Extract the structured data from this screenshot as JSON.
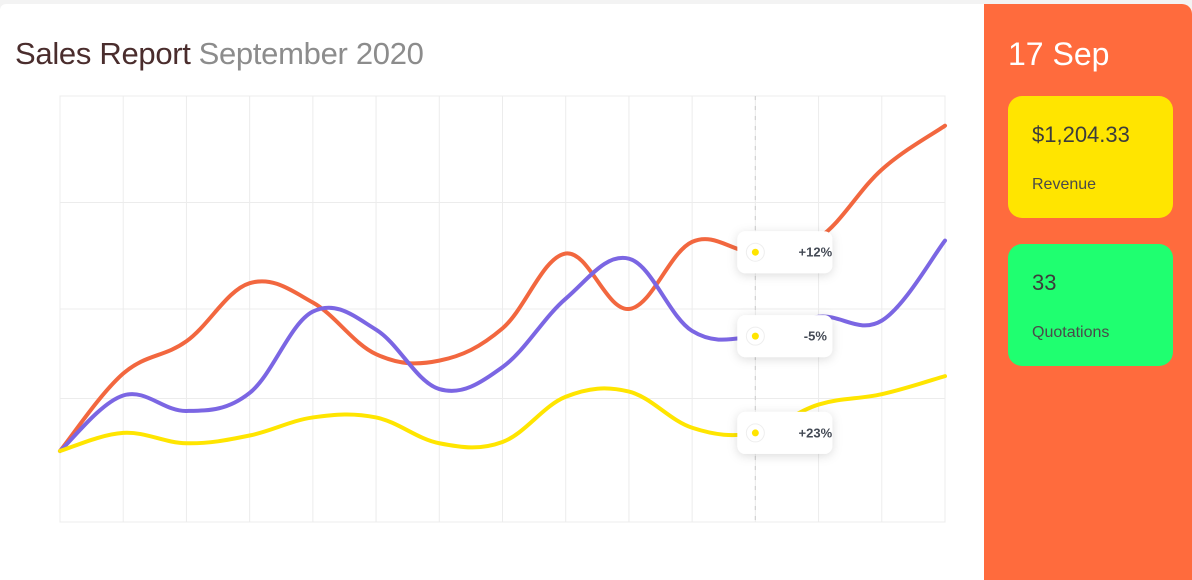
{
  "header": {
    "title": "Sales Report",
    "subtitle": "September 2020"
  },
  "sidebar": {
    "date": "17 Sep",
    "stats": [
      {
        "value": "$1,204.33",
        "label": "Revenue",
        "color": "#ffe500"
      },
      {
        "value": "33",
        "label": "Quotations",
        "color": "#1fff70"
      }
    ],
    "background": "#ff6b3d"
  },
  "chart_data": {
    "type": "line",
    "x": [
      1,
      2,
      3,
      4,
      5,
      6,
      7,
      8,
      9,
      10,
      11,
      12,
      13,
      14,
      15
    ],
    "grid": true,
    "highlight_x": 12,
    "series": [
      {
        "color": "#f2673f",
        "values": [
          5.5,
          11.5,
          14,
          18.5,
          17,
          13,
          12.5,
          15,
          20.8,
          16.5,
          21.7,
          20.9,
          22,
          27.3,
          30.7
        ]
      },
      {
        "color": "#7b66e3",
        "values": [
          5.5,
          9.8,
          8.6,
          10,
          16.3,
          14.9,
          10.3,
          12,
          17.3,
          20.4,
          14.8,
          14.4,
          15.9,
          15.6,
          21.8
        ]
      },
      {
        "color": "#ffe500",
        "values": [
          5.5,
          6.9,
          6.1,
          6.7,
          8.1,
          8.1,
          6.1,
          6.2,
          9.7,
          10.1,
          7.3,
          6.9,
          9.1,
          9.9,
          11.3
        ]
      }
    ],
    "annotations": [
      {
        "x": 12,
        "label": "+12%",
        "color": "#f2673f"
      },
      {
        "x": 12,
        "label": "-5%",
        "color": "#7b66e3"
      },
      {
        "x": 12,
        "label": "+23%",
        "color": "#ffe500"
      }
    ]
  }
}
